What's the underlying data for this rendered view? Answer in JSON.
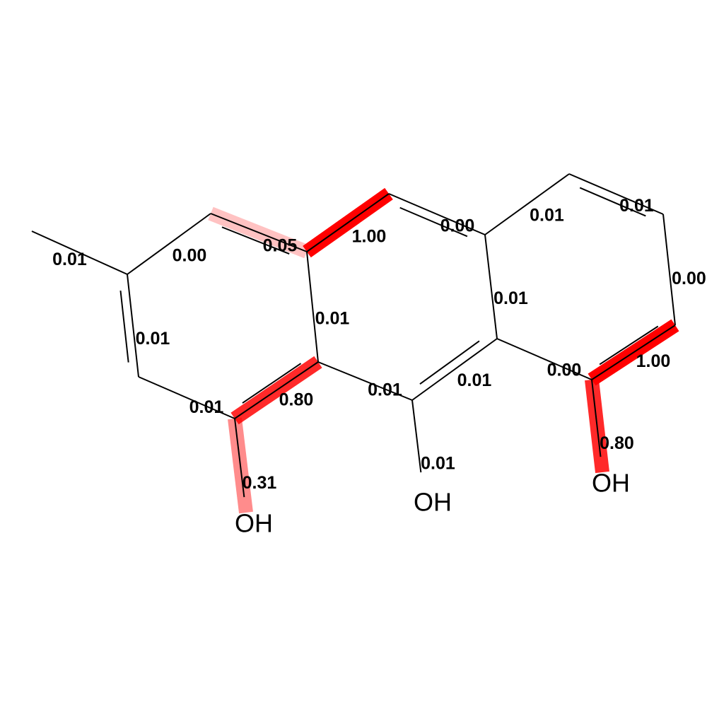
{
  "colors": {
    "highlight": "#ff0000",
    "bond": "#000000",
    "background": "#ffffff"
  },
  "atoms": [
    {
      "id": "c_methyl",
      "label": ""
    },
    {
      "id": "a1",
      "label": ""
    },
    {
      "id": "a2",
      "label": ""
    },
    {
      "id": "a3",
      "label": ""
    },
    {
      "id": "a4",
      "label": ""
    },
    {
      "id": "a5",
      "label": ""
    },
    {
      "id": "a6",
      "label": ""
    },
    {
      "id": "b1",
      "label": ""
    },
    {
      "id": "b2",
      "label": ""
    },
    {
      "id": "b3",
      "label": ""
    },
    {
      "id": "b4",
      "label": ""
    },
    {
      "id": "c1",
      "label": ""
    },
    {
      "id": "c2",
      "label": ""
    },
    {
      "id": "c3",
      "label": ""
    },
    {
      "id": "c4",
      "label": ""
    },
    {
      "id": "o1",
      "label": "OH"
    },
    {
      "id": "o2",
      "label": "OH"
    },
    {
      "id": "o3",
      "label": "OH"
    }
  ],
  "bonds": [
    {
      "id": "b_methyl",
      "from": "c_methyl",
      "to": "a1",
      "order": 1,
      "weight": 0.01,
      "label": "0.01"
    },
    {
      "id": "b_a1a2",
      "from": "a1",
      "to": "a2",
      "order": 1,
      "weight": 0.0,
      "label": "0.00"
    },
    {
      "id": "b_a2a3",
      "from": "a2",
      "to": "a3",
      "order": 2,
      "weight": 0.05,
      "label": "0.05"
    },
    {
      "id": "b_a3b1",
      "from": "a3",
      "to": "b1",
      "order": 1,
      "weight": 1.0,
      "label": "1.00"
    },
    {
      "id": "b_b1b2",
      "from": "b1",
      "to": "b2",
      "order": 2,
      "weight": 0.0,
      "label": "0.00"
    },
    {
      "id": "b_b2c1",
      "from": "b2",
      "to": "c1",
      "order": 1,
      "weight": 0.01,
      "label": "0.01"
    },
    {
      "id": "b_c1c2",
      "from": "c1",
      "to": "c2",
      "order": 2,
      "weight": 0.01,
      "label": "0.01"
    },
    {
      "id": "b_c2c3",
      "from": "c2",
      "to": "c3",
      "order": 1,
      "weight": 0.0,
      "label": "0.00"
    },
    {
      "id": "b_c3c4",
      "from": "c3",
      "to": "c4",
      "order": 2,
      "weight": 1.0,
      "label": "1.00"
    },
    {
      "id": "b_c4o3",
      "from": "c4",
      "to": "o3",
      "order": 1,
      "weight": 0.8,
      "label": "0.80"
    },
    {
      "id": "b_c4b3",
      "from": "c4",
      "to": "b3",
      "order": 1,
      "weight": 0.0,
      "label": "0.00"
    },
    {
      "id": "b_b2b3",
      "from": "b2",
      "to": "b3",
      "order": 1,
      "weight": 0.01,
      "label": "0.01"
    },
    {
      "id": "b_b3b4",
      "from": "b3",
      "to": "b4",
      "order": 2,
      "weight": 0.01,
      "label": "0.01"
    },
    {
      "id": "b_b4o2",
      "from": "b4",
      "to": "o2",
      "order": 1,
      "weight": 0.01,
      "label": "0.01"
    },
    {
      "id": "b_b4a4",
      "from": "b4",
      "to": "a4",
      "order": 1,
      "weight": 0.01,
      "label": "0.01"
    },
    {
      "id": "b_a3a4",
      "from": "a3",
      "to": "a4",
      "order": 1,
      "weight": 0.01,
      "label": "0.01"
    },
    {
      "id": "b_a4a5",
      "from": "a4",
      "to": "a5",
      "order": 2,
      "weight": 0.8,
      "label": "0.80"
    },
    {
      "id": "b_a5o1",
      "from": "a5",
      "to": "o1",
      "order": 1,
      "weight": 0.31,
      "label": "0.31"
    },
    {
      "id": "b_a5a6",
      "from": "a5",
      "to": "a6",
      "order": 1,
      "weight": 0.01,
      "label": "0.01"
    },
    {
      "id": "b_a6a1",
      "from": "a6",
      "to": "a1",
      "order": 2,
      "weight": 0.01,
      "label": "0.01"
    }
  ]
}
